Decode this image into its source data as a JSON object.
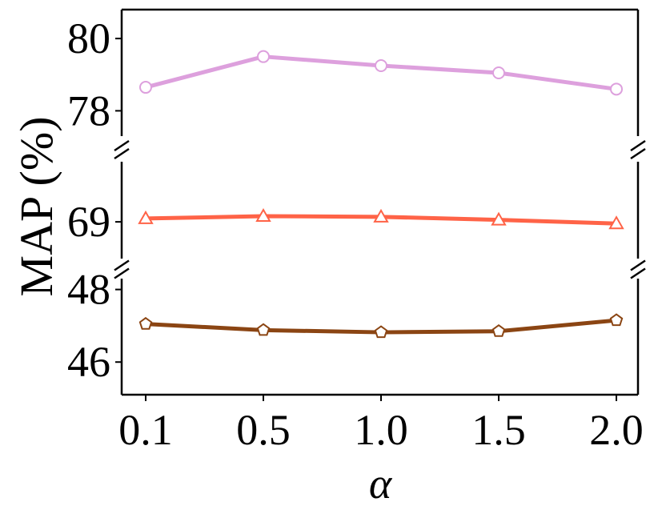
{
  "chart_data": {
    "type": "line",
    "title": "",
    "xlabel": "α",
    "ylabel": "MAP (%)",
    "grid": false,
    "legend": "none",
    "x": [
      0.1,
      0.5,
      1.0,
      1.5,
      2.0
    ],
    "x_tick_labels": [
      "0.1",
      "0.5",
      "1.0",
      "1.5",
      "2.0"
    ],
    "y_axis_break": true,
    "panels": [
      {
        "ylim": [
          77.3,
          80.8
        ],
        "yticks": [
          78,
          80
        ],
        "ytick_labels": [
          "78",
          "80"
        ]
      },
      {
        "ylim": [
          67.9,
          70.8
        ],
        "yticks": [
          69
        ],
        "ytick_labels": [
          "69"
        ]
      },
      {
        "ylim": [
          45.1,
          48.3
        ],
        "yticks": [
          46,
          48
        ],
        "ytick_labels": [
          "46",
          "48"
        ]
      }
    ],
    "series": [
      {
        "panel": 0,
        "marker": "circle",
        "color": "#DDA0DD",
        "values": [
          78.65,
          79.5,
          79.25,
          79.05,
          78.6
        ]
      },
      {
        "panel": 1,
        "marker": "triangle",
        "color": "#FF6347",
        "values": [
          69.1,
          69.17,
          69.15,
          69.06,
          68.95
        ]
      },
      {
        "panel": 2,
        "marker": "pentagon",
        "color": "#8B4513",
        "values": [
          47.05,
          46.88,
          46.82,
          46.85,
          47.15
        ]
      }
    ]
  }
}
